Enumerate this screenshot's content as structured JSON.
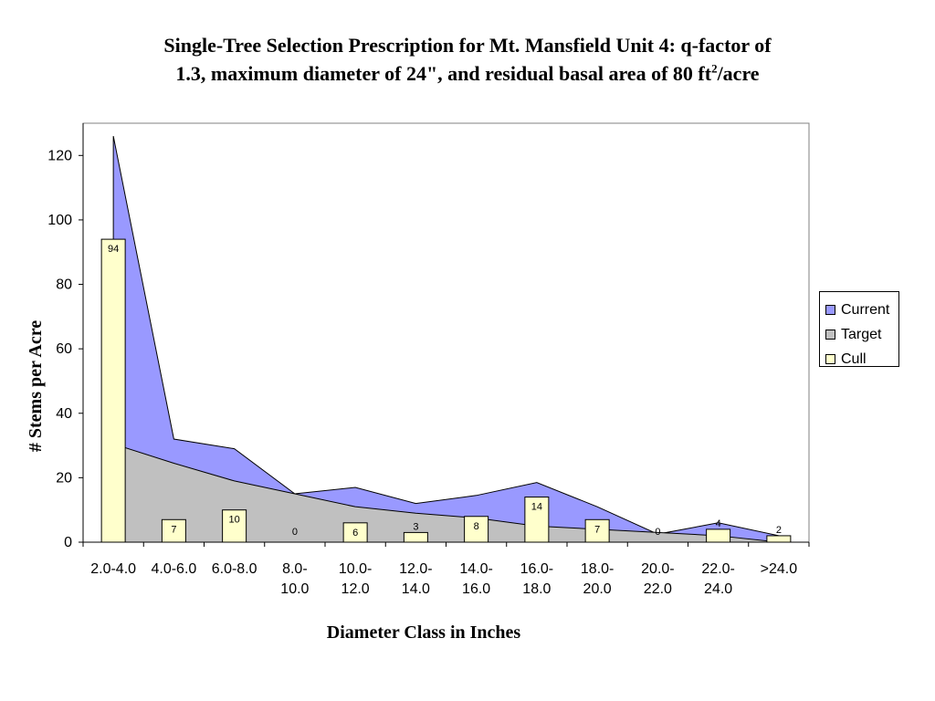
{
  "chart_data": {
    "type": "area",
    "title_line1": "Single-Tree Selection Prescription for Mt. Mansfield Unit 4: q-factor of",
    "title_line2_pre": "1.3, maximum diameter of 24\", and residual basal area of 80 ft",
    "title_sup": "2",
    "title_line2_post": "/acre",
    "xlabel": "Diameter Class in Inches",
    "ylabel": "# Stems per Acre",
    "ylim": [
      0,
      130
    ],
    "yticks": [
      "0",
      "20",
      "40",
      "60",
      "80",
      "100",
      "120"
    ],
    "categories": [
      [
        "2.0-4.0"
      ],
      [
        "4.0-6.0"
      ],
      [
        "6.0-8.0"
      ],
      [
        "8.0-",
        "10.0"
      ],
      [
        "10.0-",
        "12.0"
      ],
      [
        "12.0-",
        "14.0"
      ],
      [
        "14.0-",
        "16.0"
      ],
      [
        "16.0-",
        "18.0"
      ],
      [
        "18.0-",
        "20.0"
      ],
      [
        "20.0-",
        "22.0"
      ],
      [
        "22.0-",
        "24.0"
      ],
      [
        ">24.0"
      ]
    ],
    "series": [
      {
        "name": "Current",
        "kind": "area",
        "color": "#9999ff",
        "values": [
          126,
          32,
          29,
          15,
          17,
          12,
          14.5,
          18.5,
          11,
          2.5,
          6,
          2
        ]
      },
      {
        "name": "Target",
        "kind": "area",
        "color": "#c0c0c0",
        "values": [
          30.5,
          24.5,
          19,
          15,
          11,
          9,
          7.5,
          5,
          4,
          3,
          2,
          0
        ]
      },
      {
        "name": "Cull",
        "kind": "bar",
        "color": "#ffffcc",
        "values": [
          94,
          7,
          10,
          0,
          6,
          3,
          8,
          14,
          7,
          0,
          4,
          2
        ]
      }
    ],
    "grid": false,
    "legend_position": "right"
  }
}
